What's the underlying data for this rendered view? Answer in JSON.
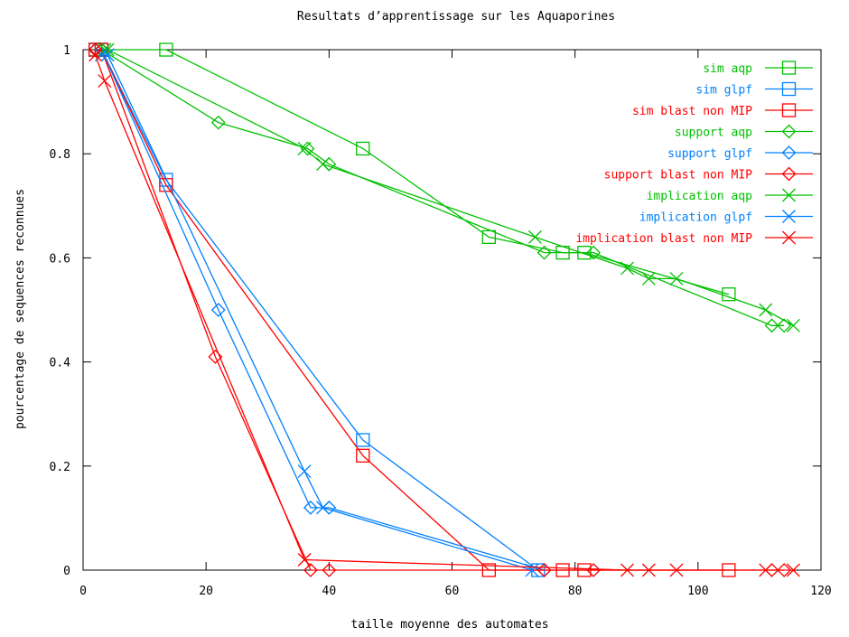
{
  "chart_data": {
    "type": "line",
    "title": "Resultats d’apprentissage sur les Aquaporines",
    "xlabel": "taille moyenne des automates",
    "ylabel": "pourcentage de sequences reconnues",
    "xlim": [
      0,
      120
    ],
    "ylim": [
      0,
      1
    ],
    "xticks": [
      0,
      20,
      40,
      60,
      80,
      100,
      120
    ],
    "yticks": [
      0,
      0.2,
      0.4,
      0.6,
      0.8,
      1
    ],
    "xtick_labels": [
      "0",
      "20",
      "40",
      "60",
      "80",
      "100",
      "120"
    ],
    "ytick_labels": [
      "0",
      "0.2",
      "0.4",
      "0.6",
      "0.8",
      "1"
    ],
    "legend_position": "top-right",
    "grid": false,
    "series": [
      {
        "name": "sim aqp",
        "color": "#00c000",
        "marker": "square",
        "x": [
          2,
          3,
          13.5,
          45.5,
          66,
          78,
          81.5,
          105
        ],
        "y": [
          1,
          1,
          1,
          0.81,
          0.64,
          0.61,
          0.61,
          0.53
        ]
      },
      {
        "name": "sim glpf",
        "color": "#0080ff",
        "marker": "square",
        "x": [
          2,
          3,
          13.5,
          45.5,
          74
        ],
        "y": [
          1,
          1,
          0.75,
          0.25,
          0
        ]
      },
      {
        "name": "sim blast non MIP",
        "color": "#ff0000",
        "marker": "square",
        "x": [
          2,
          3,
          13.5,
          45.5,
          66,
          78,
          81.5,
          105
        ],
        "y": [
          1,
          1,
          0.74,
          0.22,
          0,
          0,
          0,
          0
        ]
      },
      {
        "name": "support aqp",
        "color": "#00c000",
        "marker": "diamond",
        "x": [
          2,
          3,
          22,
          36.5,
          40,
          75,
          83,
          112,
          114
        ],
        "y": [
          1,
          1,
          0.86,
          0.81,
          0.78,
          0.61,
          0.61,
          0.47,
          0.47
        ]
      },
      {
        "name": "support glpf",
        "color": "#0080ff",
        "marker": "diamond",
        "x": [
          2,
          3,
          22,
          37,
          40,
          75
        ],
        "y": [
          1,
          1,
          0.5,
          0.12,
          0.12,
          0
        ]
      },
      {
        "name": "support blast non MIP",
        "color": "#ff0000",
        "marker": "diamond",
        "x": [
          2,
          3,
          21.5,
          37,
          40,
          75,
          83,
          112,
          114
        ],
        "y": [
          1,
          1,
          0.41,
          0,
          0,
          0,
          0,
          0,
          0
        ]
      },
      {
        "name": "implication aqp",
        "color": "#00c000",
        "marker": "x",
        "x": [
          3.5,
          4,
          36,
          39,
          73.5,
          88.5,
          92,
          96.5,
          111,
          115.5
        ],
        "y": [
          1,
          1,
          0.81,
          0.78,
          0.64,
          0.58,
          0.56,
          0.56,
          0.5,
          0.47
        ]
      },
      {
        "name": "implication glpf",
        "color": "#0080ff",
        "marker": "x",
        "x": [
          3,
          4,
          36,
          39,
          73
        ],
        "y": [
          0.99,
          0.99,
          0.19,
          0.12,
          0
        ]
      },
      {
        "name": "implication blast non MIP",
        "color": "#ff0000",
        "marker": "x",
        "x": [
          2,
          3.5,
          36,
          88.5,
          92,
          96.5,
          111,
          115.5
        ],
        "y": [
          0.99,
          0.94,
          0.02,
          0,
          0,
          0,
          0,
          0
        ]
      }
    ]
  }
}
